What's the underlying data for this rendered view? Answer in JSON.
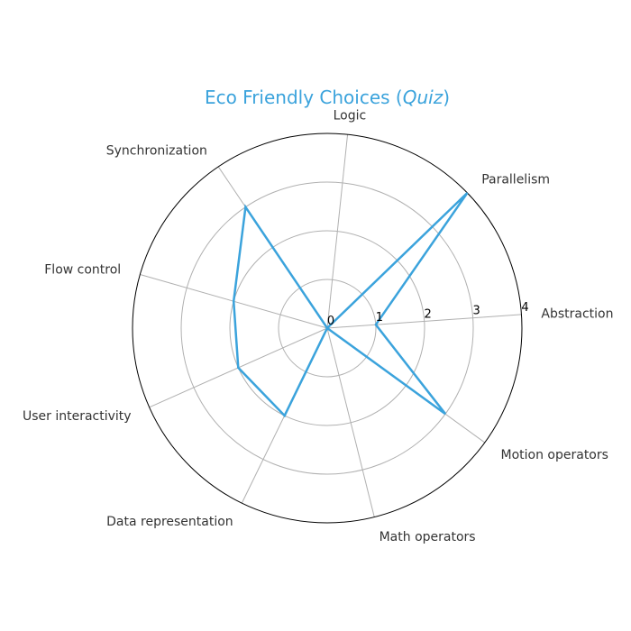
{
  "chart_data": {
    "type": "radar",
    "title": "Eco Friendly Choices",
    "title_suffix": "Quiz",
    "categories": [
      "Abstraction",
      "Parallelism",
      "Logic",
      "Synchronization",
      "Flow control",
      "User interactivity",
      "Data representation",
      "Math operators",
      "Motion operators"
    ],
    "values": [
      1,
      4,
      0,
      3,
      2,
      2,
      2,
      0,
      3
    ],
    "rlim": [
      0,
      4
    ],
    "radial_ticks": [
      "0",
      "1",
      "2",
      "3",
      "4"
    ],
    "grid": true,
    "series_color": "#3ba3dc",
    "title_color": "#3ba3dc"
  }
}
